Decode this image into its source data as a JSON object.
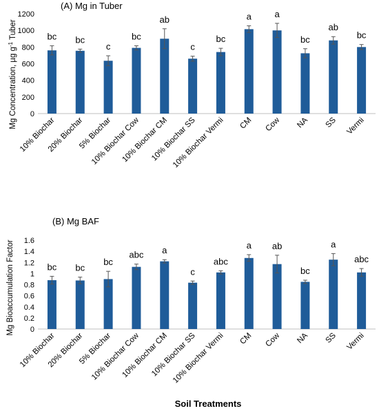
{
  "chart_data": [
    {
      "type": "bar",
      "title": "(A) Mg in Tuber",
      "ylabel": "Mg Concentration, µg g",
      "ylabel_sup": "-1",
      "ylabel_tail": " Tuber",
      "ylim": [
        0,
        1200
      ],
      "yticks": [
        0,
        200,
        400,
        600,
        800,
        1000,
        1200
      ],
      "grid": false,
      "color": "#1F5C99",
      "categories": [
        "10% Biochar",
        "20% Biochar",
        "5% Biochar",
        "10% Biochar Cow",
        "10% Biochar CM",
        "10% Biochar SS",
        "10% Biochar Vermi",
        "CM",
        "Cow",
        "NA",
        "SS",
        "Vermi"
      ],
      "values": [
        760,
        755,
        635,
        790,
        900,
        660,
        740,
        1015,
        1000,
        725,
        880,
        800
      ],
      "errors": [
        55,
        20,
        60,
        25,
        120,
        30,
        45,
        40,
        85,
        55,
        45,
        30
      ],
      "letters": [
        "bc",
        "bc",
        "c",
        "bc",
        "ab",
        "c",
        "bc",
        "a",
        "a",
        "bc",
        "ab",
        "bc"
      ]
    },
    {
      "type": "bar",
      "title": "(B) Mg BAF",
      "ylabel": "Mg Bioaccumulation Factor",
      "ylim": [
        0,
        1.6
      ],
      "yticks": [
        0,
        0.2,
        0.4,
        0.6,
        0.8,
        1,
        1.2,
        1.4,
        1.6
      ],
      "grid": false,
      "color": "#1F5C99",
      "categories": [
        "10% Biochar",
        "20% Biochar",
        "5% Biochar",
        "10% Biochar Cow",
        "10% Biochar CM",
        "10% Biochar SS",
        "10% Biochar Vermi",
        "CM",
        "Cow",
        "NA",
        "SS",
        "Vermi"
      ],
      "values": [
        0.88,
        0.875,
        0.9,
        1.12,
        1.22,
        0.835,
        1.02,
        1.28,
        1.17,
        0.85,
        1.25,
        1.02
      ],
      "errors": [
        0.07,
        0.06,
        0.14,
        0.05,
        0.03,
        0.03,
        0.03,
        0.06,
        0.16,
        0.03,
        0.11,
        0.07
      ],
      "letters": [
        "bc",
        "bc",
        "bc",
        "abc",
        "a",
        "c",
        "abc",
        "a",
        "ab",
        "bc",
        "a",
        "abc"
      ]
    }
  ],
  "shared_xlabel": "Soil Treatments"
}
